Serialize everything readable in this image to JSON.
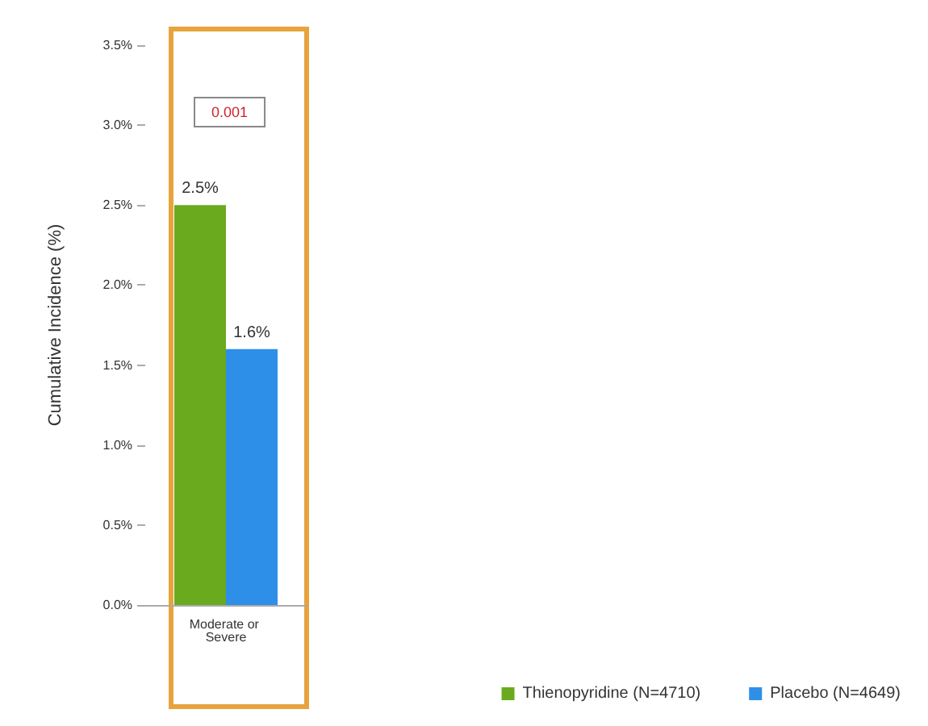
{
  "chart_data": {
    "type": "bar",
    "ylabel": "Cumulative Incidence (%)",
    "categories": [
      "Moderate or Severe"
    ],
    "series": [
      {
        "name": "Thienopyridine (N=4710)",
        "color": "#6aaa1e",
        "values": [
          2.5
        ],
        "value_labels": [
          "2.5%"
        ]
      },
      {
        "name": "Placebo (N=4649)",
        "color": "#2e8fe8",
        "values": [
          1.6
        ],
        "value_labels": [
          "1.6%"
        ]
      }
    ],
    "ylim": [
      0,
      3.5
    ],
    "yticks": [
      {
        "value": 0,
        "label": "0.0%"
      },
      {
        "value": 0.5,
        "label": "0.5%"
      },
      {
        "value": 1,
        "label": "1.0%"
      },
      {
        "value": 1.5,
        "label": "1.5%"
      },
      {
        "value": 2,
        "label": "2.0%"
      },
      {
        "value": 2.5,
        "label": "2.5%"
      },
      {
        "value": 3,
        "label": "3.0%"
      },
      {
        "value": 3.5,
        "label": "3.5%"
      }
    ],
    "annotations": [
      "0.001"
    ],
    "grid": false,
    "legend": "bottom right"
  }
}
